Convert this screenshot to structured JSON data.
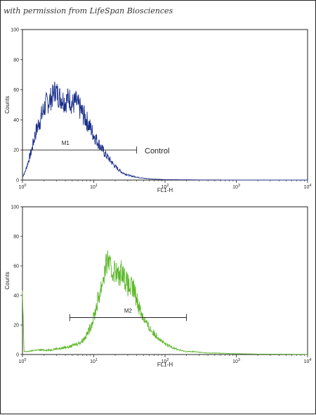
{
  "credit_text": "with permission from LifeSpan Biosciences",
  "chart_data": [
    {
      "type": "line",
      "xlabel": "FL1-H",
      "ylabel": "Counts",
      "xscale": "log",
      "xlim": [
        1,
        10000
      ],
      "ylim": [
        0,
        100
      ],
      "xticks": [
        {
          "value": 1,
          "base": "10",
          "exp": "0"
        },
        {
          "value": 10,
          "base": "10",
          "exp": "1"
        },
        {
          "value": 100,
          "base": "10",
          "exp": "2"
        },
        {
          "value": 1000,
          "base": "10",
          "exp": "3"
        },
        {
          "value": 10000,
          "base": "10",
          "exp": "4"
        }
      ],
      "yticks": [
        "0",
        "20",
        "40",
        "60",
        "80",
        "100"
      ],
      "color": "#1a2f8a",
      "series": [
        {
          "x": [
            1.0,
            1.1,
            1.2,
            1.35,
            1.5,
            1.7,
            1.9,
            2.1,
            2.3,
            2.6,
            2.9,
            3.2,
            3.6,
            4.0,
            4.5,
            5.0,
            5.6,
            6.3,
            7.0,
            7.9,
            8.9,
            10,
            11.2,
            12.6,
            14.1,
            15.8,
            17.8,
            20,
            22.4,
            25,
            28,
            31.6,
            35.5,
            40,
            45,
            50,
            56,
            63,
            70,
            80,
            90,
            100,
            125,
            160,
            200,
            300,
            500,
            1000,
            3000,
            10000
          ],
          "y": [
            2,
            6,
            12,
            20,
            30,
            38,
            44,
            50,
            52,
            55,
            60,
            56,
            54,
            52,
            55,
            50,
            52,
            48,
            44,
            40,
            35,
            30,
            26,
            22,
            18,
            15,
            12,
            9,
            7,
            5,
            4,
            3,
            2.5,
            2,
            1.5,
            1.2,
            1,
            0.8,
            0.6,
            0.5,
            0.4,
            0.3,
            0.3,
            0.2,
            0.2,
            0.1,
            0.1,
            0,
            0,
            0
          ]
        }
      ],
      "markers": [
        {
          "label": "M1",
          "start": 1.0,
          "end": 40,
          "y": 20
        }
      ],
      "annotations": [
        {
          "text": "Control"
        }
      ]
    },
    {
      "type": "line",
      "xlabel": "FL1-H",
      "ylabel": "Counts",
      "xscale": "log",
      "xlim": [
        1,
        10000
      ],
      "ylim": [
        0,
        100
      ],
      "xticks": [
        {
          "value": 1,
          "base": "10",
          "exp": "0"
        },
        {
          "value": 10,
          "base": "10",
          "exp": "1"
        },
        {
          "value": 100,
          "base": "10",
          "exp": "2"
        },
        {
          "value": 1000,
          "base": "10",
          "exp": "3"
        },
        {
          "value": 10000,
          "base": "10",
          "exp": "4"
        }
      ],
      "yticks": [
        "0",
        "20",
        "40",
        "60",
        "80",
        "100"
      ],
      "color": "#5cb82a",
      "series": [
        {
          "x": [
            1.0,
            1.05,
            1.2,
            1.5,
            2,
            2.5,
            3,
            3.5,
            4,
            4.5,
            5,
            5.6,
            6.3,
            7.1,
            7.9,
            8.9,
            10,
            11.2,
            12.6,
            14.1,
            15.8,
            17.8,
            20,
            22.4,
            25,
            28,
            31.6,
            35.5,
            40,
            45,
            50,
            56,
            63,
            70,
            80,
            90,
            100,
            112,
            126,
            141,
            158,
            200,
            250,
            300,
            400,
            500,
            700,
            1000,
            2000,
            5000,
            10000
          ],
          "y": [
            40,
            2,
            2,
            3,
            3,
            3,
            4,
            4,
            5,
            5,
            6,
            7,
            8,
            10,
            13,
            18,
            25,
            35,
            45,
            55,
            65,
            55,
            58,
            52,
            58,
            50,
            45,
            45,
            38,
            30,
            25,
            20,
            17,
            14,
            12,
            9,
            7,
            6,
            5,
            4,
            3,
            2,
            2,
            1.5,
            1,
            1,
            0.8,
            0.5,
            0.3,
            0.2,
            0.1
          ]
        }
      ],
      "markers": [
        {
          "label": "M2",
          "start": 4.6,
          "end": 200,
          "y": 25
        }
      ],
      "annotations": []
    }
  ]
}
